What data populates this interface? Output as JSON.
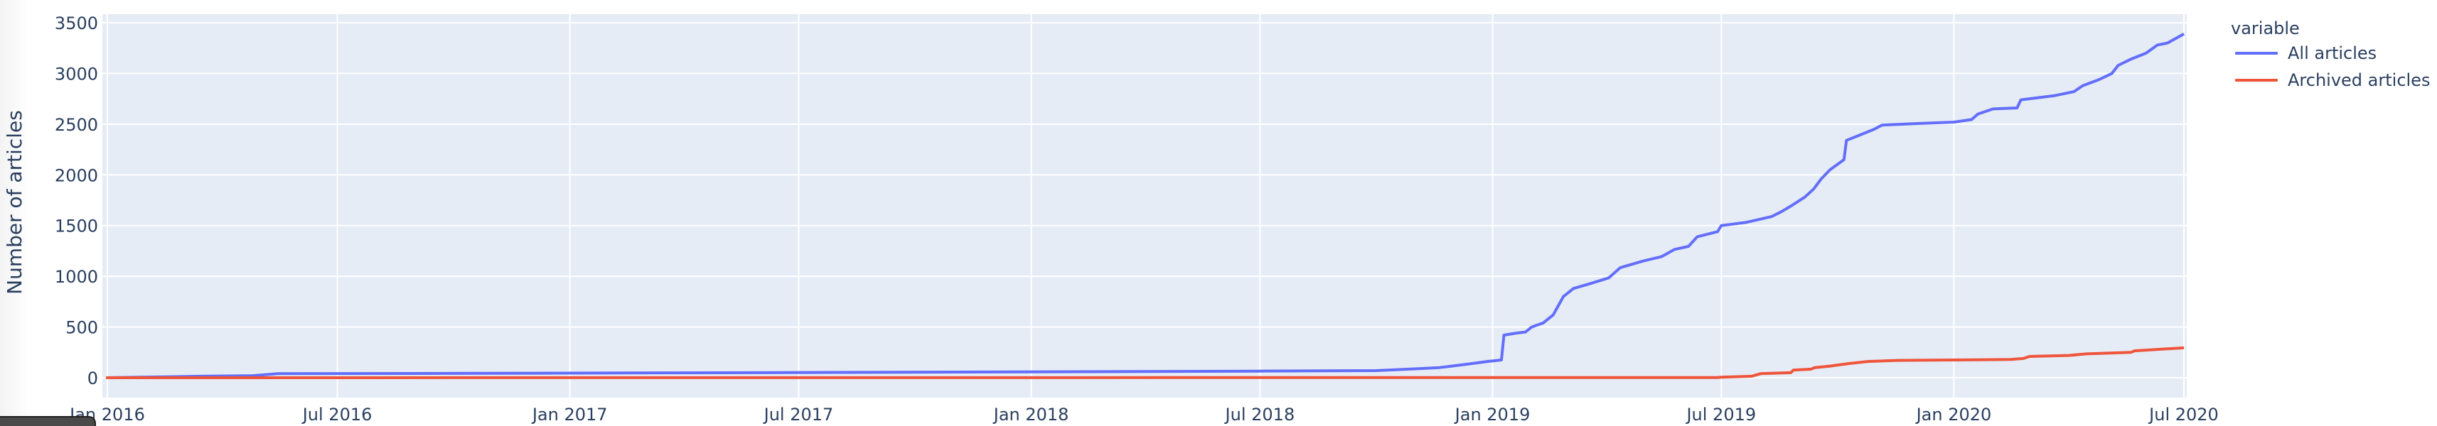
{
  "chart_data": {
    "type": "line",
    "title": "",
    "xlabel": "",
    "ylabel": "Number of articles",
    "ylim": [
      -180,
      3680
    ],
    "xlim": [
      "2015-12-20",
      "2020-07-07"
    ],
    "grid": true,
    "legend_title": "variable",
    "legend_position": "right",
    "x_ticks": [
      "Jan 2016",
      "Jul 2016",
      "Jan 2017",
      "Jul 2017",
      "Jan 2018",
      "Jul 2018",
      "Jan 2019",
      "Jul 2019",
      "Jan 2020",
      "Jul 2020"
    ],
    "y_ticks": [
      0,
      500,
      1000,
      1500,
      2000,
      2500,
      3000,
      3500
    ],
    "series": [
      {
        "name": "All articles",
        "color": "#636efa",
        "points": [
          [
            "2015-12-31",
            0
          ],
          [
            "2016-03-15",
            15
          ],
          [
            "2016-04-25",
            20
          ],
          [
            "2016-05-15",
            40
          ],
          [
            "2016-09-01",
            42
          ],
          [
            "2017-06-01",
            50
          ],
          [
            "2018-01-01",
            58
          ],
          [
            "2018-07-01",
            65
          ],
          [
            "2018-10-01",
            70
          ],
          [
            "2018-11-05",
            90
          ],
          [
            "2018-11-20",
            100
          ],
          [
            "2018-12-10",
            130
          ],
          [
            "2018-12-28",
            160
          ],
          [
            "2019-01-08",
            175
          ],
          [
            "2019-01-10",
            420
          ],
          [
            "2019-01-20",
            440
          ],
          [
            "2019-01-27",
            450
          ],
          [
            "2019-02-01",
            500
          ],
          [
            "2019-02-10",
            540
          ],
          [
            "2019-02-18",
            620
          ],
          [
            "2019-02-26",
            800
          ],
          [
            "2019-03-06",
            880
          ],
          [
            "2019-03-20",
            930
          ],
          [
            "2019-04-03",
            985
          ],
          [
            "2019-04-12",
            1085
          ],
          [
            "2019-04-30",
            1150
          ],
          [
            "2019-05-15",
            1195
          ],
          [
            "2019-05-25",
            1265
          ],
          [
            "2019-06-05",
            1295
          ],
          [
            "2019-06-12",
            1390
          ],
          [
            "2019-06-28",
            1440
          ],
          [
            "2019-07-01",
            1500
          ],
          [
            "2019-07-20",
            1530
          ],
          [
            "2019-08-10",
            1590
          ],
          [
            "2019-08-18",
            1640
          ],
          [
            "2019-08-26",
            1700
          ],
          [
            "2019-09-05",
            1780
          ],
          [
            "2019-09-12",
            1860
          ],
          [
            "2019-09-18",
            1960
          ],
          [
            "2019-09-25",
            2050
          ],
          [
            "2019-10-06",
            2150
          ],
          [
            "2019-10-08",
            2340
          ],
          [
            "2019-10-18",
            2390
          ],
          [
            "2019-10-30",
            2450
          ],
          [
            "2019-11-05",
            2490
          ],
          [
            "2019-12-01",
            2505
          ],
          [
            "2020-01-01",
            2520
          ],
          [
            "2020-01-15",
            2545
          ],
          [
            "2020-01-20",
            2600
          ],
          [
            "2020-02-01",
            2650
          ],
          [
            "2020-02-20",
            2660
          ],
          [
            "2020-02-23",
            2740
          ],
          [
            "2020-03-20",
            2780
          ],
          [
            "2020-04-05",
            2820
          ],
          [
            "2020-04-12",
            2880
          ],
          [
            "2020-04-25",
            2940
          ],
          [
            "2020-05-05",
            3000
          ],
          [
            "2020-05-10",
            3080
          ],
          [
            "2020-05-20",
            3140
          ],
          [
            "2020-06-01",
            3200
          ],
          [
            "2020-06-10",
            3280
          ],
          [
            "2020-06-18",
            3300
          ],
          [
            "2020-07-01",
            3390
          ]
        ]
      },
      {
        "name": "Archived articles",
        "color": "#ef553b",
        "points": [
          [
            "2015-12-31",
            0
          ],
          [
            "2019-06-28",
            2
          ],
          [
            "2019-07-01",
            5
          ],
          [
            "2019-07-25",
            15
          ],
          [
            "2019-08-01",
            40
          ],
          [
            "2019-08-25",
            50
          ],
          [
            "2019-08-27",
            75
          ],
          [
            "2019-09-10",
            85
          ],
          [
            "2019-09-13",
            100
          ],
          [
            "2019-09-25",
            115
          ],
          [
            "2019-10-10",
            140
          ],
          [
            "2019-10-25",
            160
          ],
          [
            "2019-11-15",
            170
          ],
          [
            "2020-01-01",
            175
          ],
          [
            "2020-02-15",
            180
          ],
          [
            "2020-02-25",
            190
          ],
          [
            "2020-03-01",
            210
          ],
          [
            "2020-04-01",
            220
          ],
          [
            "2020-04-15",
            235
          ],
          [
            "2020-05-20",
            250
          ],
          [
            "2020-05-23",
            265
          ],
          [
            "2020-07-01",
            295
          ]
        ]
      }
    ]
  },
  "legend": {
    "title": "variable",
    "items": [
      {
        "label": "All articles",
        "color": "#636efa"
      },
      {
        "label": "Archived articles",
        "color": "#ef553b"
      }
    ]
  },
  "axes": {
    "y_title": "Number of articles",
    "y_ticks": [
      "3500",
      "3000",
      "2500",
      "2000",
      "1500",
      "1000",
      "500",
      "0"
    ],
    "x_ticks": [
      "Jan 2016",
      "Jul 2016",
      "Jan 2017",
      "Jul 2017",
      "Jan 2018",
      "Jul 2018",
      "Jan 2019",
      "Jul 2019",
      "Jan 2020",
      "Jul 2020"
    ]
  },
  "colors": {
    "plot_bg": "#e5ecf6",
    "grid": "#ffffff",
    "text": "#2a3f5f"
  }
}
